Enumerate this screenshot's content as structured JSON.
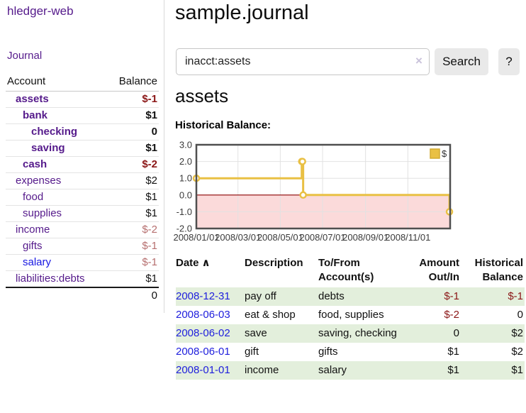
{
  "app": {
    "title": "hledger-web"
  },
  "sidebar": {
    "journal_label": "Journal",
    "account_header": "Account",
    "balance_header": "Balance",
    "accounts": [
      {
        "name": "assets",
        "balance": "$-1"
      },
      {
        "name": "bank",
        "balance": "$1"
      },
      {
        "name": "checking",
        "balance": "0"
      },
      {
        "name": "saving",
        "balance": "$1"
      },
      {
        "name": "cash",
        "balance": "$-2"
      },
      {
        "name": "expenses",
        "balance": "$2"
      },
      {
        "name": "food",
        "balance": "$1"
      },
      {
        "name": "supplies",
        "balance": "$1"
      },
      {
        "name": "income",
        "balance": "$-2"
      },
      {
        "name": "gifts",
        "balance": "$-1"
      },
      {
        "name": "salary",
        "balance": "$-1"
      },
      {
        "name": "liabilities:debts",
        "balance": "$1"
      }
    ],
    "total": "0"
  },
  "header": {
    "title": "sample.journal"
  },
  "search": {
    "value": "inacct:assets",
    "clear": "×",
    "button_label": "Search",
    "help_label": "?"
  },
  "main": {
    "account_heading": "assets",
    "chart_label": "Historical Balance:"
  },
  "chart_data": {
    "type": "line",
    "step": true,
    "title": "Historical Balance",
    "legend": {
      "label": "$",
      "position": "top-right"
    },
    "series": [
      {
        "name": "$",
        "color": "#e9c044",
        "points": [
          {
            "date": "2008-01-01",
            "value": 1
          },
          {
            "date": "2008-06-01",
            "value": 2
          },
          {
            "date": "2008-06-02",
            "value": 2
          },
          {
            "date": "2008-06-03",
            "value": 0
          },
          {
            "date": "2008-12-31",
            "value": -1
          }
        ]
      }
    ],
    "x_range": [
      "2008-01-01",
      "2009-01-01"
    ],
    "x_ticks": [
      {
        "date": "2008-01-01",
        "label": "2008/01/01"
      },
      {
        "date": "2008-03-01",
        "label": "2008/03/01"
      },
      {
        "date": "2008-05-01",
        "label": "2008/05/01"
      },
      {
        "date": "2008-07-01",
        "label": "2008/07/01"
      },
      {
        "date": "2008-09-01",
        "label": "2008/09/01"
      },
      {
        "date": "2008-11-01",
        "label": "2008/11/01"
      }
    ],
    "y_ticks": [
      {
        "value": 3,
        "label": "3.0"
      },
      {
        "value": 2,
        "label": "2.0"
      },
      {
        "value": 1,
        "label": "1.0"
      },
      {
        "value": 0,
        "label": "0.0"
      },
      {
        "value": -1,
        "label": "-1.0"
      },
      {
        "value": -2,
        "label": "-2.0"
      }
    ],
    "ylim": [
      -2,
      3
    ],
    "grid": true,
    "zero_line_color": "#8b0000",
    "negative_region_fill": "#fbdada"
  },
  "register": {
    "columns": {
      "date": "Date",
      "sort_indicator": "∧",
      "description": "Description",
      "account": "To/From Account(s)",
      "amount": "Amount Out/In",
      "balance": "Historical Balance"
    },
    "rows": [
      {
        "date": "2008-12-31",
        "description": "pay off",
        "account": "debts",
        "amount": "$-1",
        "balance": "$-1"
      },
      {
        "date": "2008-06-03",
        "description": "eat & shop",
        "account": "food, supplies",
        "amount": "$-2",
        "balance": "0"
      },
      {
        "date": "2008-06-02",
        "description": "save",
        "account": "saving, checking",
        "amount": "0",
        "balance": "$2"
      },
      {
        "date": "2008-06-01",
        "description": "gift",
        "account": "gifts",
        "amount": "$1",
        "balance": "$2"
      },
      {
        "date": "2008-01-01",
        "description": "income",
        "account": "salary",
        "amount": "$1",
        "balance": "$1"
      }
    ]
  }
}
